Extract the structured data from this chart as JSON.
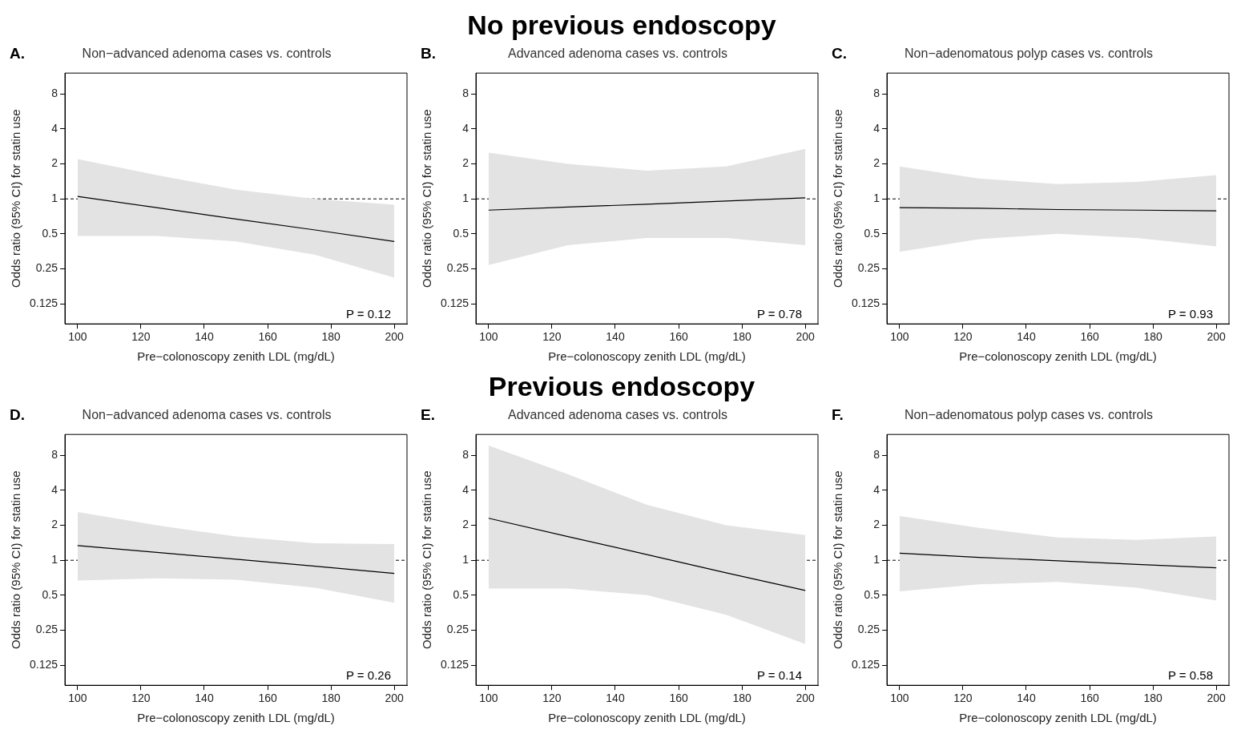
{
  "chart_data": [
    {
      "type": "line",
      "title": "Non−advanced adenoma cases vs. controls",
      "xlabel": "Pre−colonoscopy zenith LDL (mg/dL)",
      "ylabel": "Odds ratio (95% CI) for statin use",
      "annotations": [
        "A.",
        "P = 0.12"
      ],
      "x": [
        100,
        125,
        150,
        175,
        200
      ],
      "log": "y",
      "grid": false,
      "legend": false,
      "xlim": [
        96,
        204
      ],
      "ylim": [
        0.084,
        12.1
      ],
      "xticks": [
        100,
        120,
        140,
        160,
        180,
        200
      ],
      "yticks": [
        0.125,
        0.25,
        0.5,
        1,
        2,
        4,
        8
      ],
      "ref_lines": [
        {
          "axis": "y",
          "value": 1,
          "line_style": "dashed",
          "color": "#000000"
        }
      ],
      "series": [
        {
          "color": "#000000",
          "values": [
            1.05,
            0.84,
            0.67,
            0.54,
            0.43
          ],
          "lower": [
            0.48,
            0.48,
            0.43,
            0.33,
            0.21
          ],
          "upper": [
            2.2,
            1.6,
            1.2,
            1.0,
            0.89
          ]
        }
      ]
    },
    {
      "type": "line",
      "subtitle": "No previous endoscopy",
      "title": "Advanced adenoma cases vs. controls",
      "xlabel": "Pre−colonoscopy zenith LDL (mg/dL)",
      "ylabel": "Odds ratio (95% CI) for statin use",
      "annotations": [
        "B.",
        "P = 0.78"
      ],
      "x": [
        100,
        125,
        150,
        175,
        200
      ],
      "log": "y",
      "grid": false,
      "legend": false,
      "xlim": [
        96,
        204
      ],
      "ylim": [
        0.084,
        12.1
      ],
      "xticks": [
        100,
        120,
        140,
        160,
        180,
        200
      ],
      "yticks": [
        0.125,
        0.25,
        0.5,
        1,
        2,
        4,
        8
      ],
      "ref_lines": [
        {
          "axis": "y",
          "value": 1,
          "line_style": "dashed",
          "color": "#000000"
        }
      ],
      "series": [
        {
          "color": "#000000",
          "values": [
            0.8,
            0.85,
            0.9,
            0.96,
            1.02
          ],
          "lower": [
            0.27,
            0.4,
            0.46,
            0.46,
            0.4
          ],
          "upper": [
            2.5,
            2.0,
            1.75,
            1.9,
            2.7
          ]
        }
      ]
    },
    {
      "type": "line",
      "title": "Non−adenomatous polyp cases vs. controls",
      "xlabel": "Pre−colonoscopy zenith LDL (mg/dL)",
      "ylabel": "Odds ratio (95% CI) for statin use",
      "annotations": [
        "C.",
        "P = 0.93"
      ],
      "x": [
        100,
        125,
        150,
        175,
        200
      ],
      "log": "y",
      "grid": false,
      "legend": false,
      "xlim": [
        96,
        204
      ],
      "ylim": [
        0.084,
        12.1
      ],
      "xticks": [
        100,
        120,
        140,
        160,
        180,
        200
      ],
      "yticks": [
        0.125,
        0.25,
        0.5,
        1,
        2,
        4,
        8
      ],
      "ref_lines": [
        {
          "axis": "y",
          "value": 1,
          "line_style": "dashed",
          "color": "#000000"
        }
      ],
      "series": [
        {
          "color": "#000000",
          "values": [
            0.84,
            0.83,
            0.81,
            0.8,
            0.79
          ],
          "lower": [
            0.35,
            0.45,
            0.5,
            0.46,
            0.39
          ],
          "upper": [
            1.9,
            1.5,
            1.34,
            1.4,
            1.6
          ]
        }
      ]
    },
    {
      "type": "line",
      "title": "Non−advanced adenoma cases vs. controls",
      "xlabel": "Pre−colonoscopy zenith LDL (mg/dL)",
      "ylabel": "Odds ratio (95% CI) for statin use",
      "annotations": [
        "D.",
        "P = 0.26"
      ],
      "x": [
        100,
        125,
        150,
        175,
        200
      ],
      "log": "y",
      "grid": false,
      "legend": false,
      "xlim": [
        96,
        204
      ],
      "ylim": [
        0.084,
        12.1
      ],
      "xticks": [
        100,
        120,
        140,
        160,
        180,
        200
      ],
      "yticks": [
        0.125,
        0.25,
        0.5,
        1,
        2,
        4,
        8
      ],
      "ref_lines": [
        {
          "axis": "y",
          "value": 1,
          "line_style": "dashed",
          "color": "#000000"
        }
      ],
      "series": [
        {
          "color": "#000000",
          "values": [
            1.34,
            1.17,
            1.02,
            0.89,
            0.77
          ],
          "lower": [
            0.67,
            0.7,
            0.68,
            0.58,
            0.43
          ],
          "upper": [
            2.6,
            2.0,
            1.6,
            1.4,
            1.38
          ]
        }
      ]
    },
    {
      "type": "line",
      "subtitle": "Previous endoscopy",
      "title": "Advanced adenoma cases vs. controls",
      "xlabel": "Pre−colonoscopy zenith LDL (mg/dL)",
      "ylabel": "Odds ratio (95% CI) for statin use",
      "annotations": [
        "E.",
        "P = 0.14"
      ],
      "x": [
        100,
        125,
        150,
        175,
        200
      ],
      "log": "y",
      "grid": false,
      "legend": false,
      "xlim": [
        96,
        204
      ],
      "ylim": [
        0.084,
        12.1
      ],
      "xticks": [
        100,
        120,
        140,
        160,
        180,
        200
      ],
      "yticks": [
        0.125,
        0.25,
        0.5,
        1,
        2,
        4,
        8
      ],
      "ref_lines": [
        {
          "axis": "y",
          "value": 1,
          "line_style": "dashed",
          "color": "#000000"
        }
      ],
      "series": [
        {
          "color": "#000000",
          "values": [
            2.3,
            1.6,
            1.12,
            0.78,
            0.55
          ],
          "lower": [
            0.57,
            0.57,
            0.5,
            0.34,
            0.19
          ],
          "upper": [
            9.7,
            5.5,
            3.0,
            2.0,
            1.65
          ]
        }
      ]
    },
    {
      "type": "line",
      "title": "Non−adenomatous polyp cases vs. controls",
      "xlabel": "Pre−colonoscopy zenith LDL (mg/dL)",
      "ylabel": "Odds ratio (95% CI) for statin use",
      "annotations": [
        "F.",
        "P = 0.58"
      ],
      "x": [
        100,
        125,
        150,
        175,
        200
      ],
      "log": "y",
      "grid": false,
      "legend": false,
      "xlim": [
        96,
        204
      ],
      "ylim": [
        0.084,
        12.1
      ],
      "xticks": [
        100,
        120,
        140,
        160,
        180,
        200
      ],
      "yticks": [
        0.125,
        0.25,
        0.5,
        1,
        2,
        4,
        8
      ],
      "ref_lines": [
        {
          "axis": "y",
          "value": 1,
          "line_style": "dashed",
          "color": "#000000"
        }
      ],
      "series": [
        {
          "color": "#000000",
          "values": [
            1.15,
            1.06,
            0.99,
            0.92,
            0.86
          ],
          "lower": [
            0.54,
            0.62,
            0.65,
            0.58,
            0.45
          ],
          "upper": [
            2.4,
            1.9,
            1.57,
            1.5,
            1.6
          ]
        }
      ]
    }
  ]
}
